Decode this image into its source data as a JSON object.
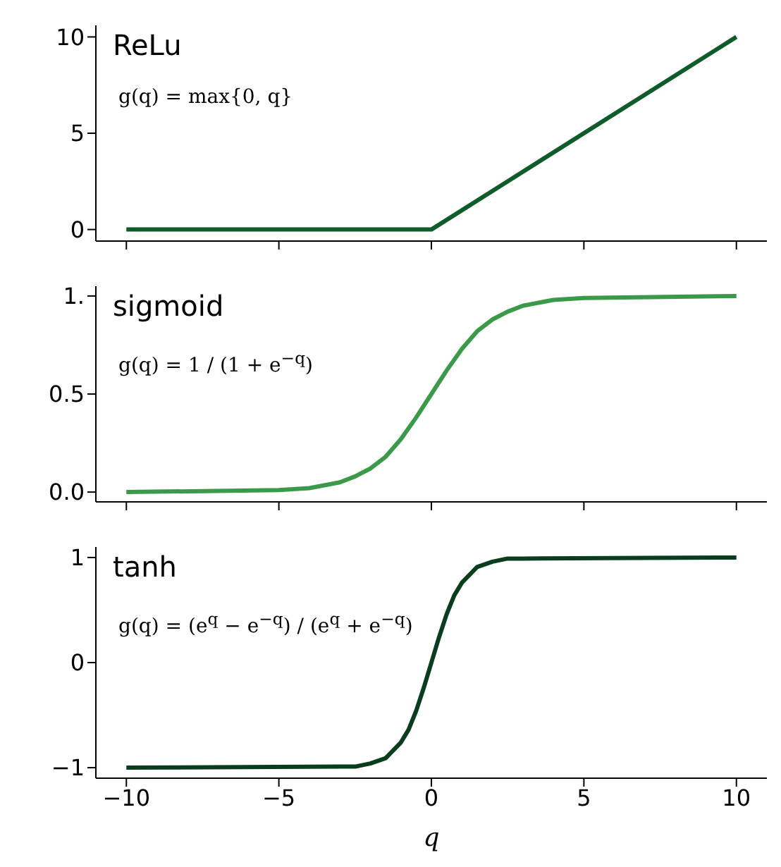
{
  "chart_data": [
    {
      "type": "line",
      "title": "ReLu",
      "annotations": [
        "g(q) = max{0, q}"
      ],
      "x": [
        -10,
        0,
        10
      ],
      "series": [
        {
          "color": "#0d5c2a",
          "values": [
            0,
            0,
            10
          ]
        }
      ],
      "xlim": [
        -11,
        11
      ],
      "xticks": [
        {
          "value": -10,
          "label": null
        },
        {
          "value": -5,
          "label": null
        },
        {
          "value": 0,
          "label": null
        },
        {
          "value": 5,
          "label": null
        },
        {
          "value": 10,
          "label": null
        }
      ],
      "ylim": [
        -0.6,
        10.6
      ],
      "yticks": [
        0,
        5,
        10
      ],
      "tick_labels": "y"
    },
    {
      "type": "line",
      "title": "sigmoid",
      "annotations": [
        "g(q) = 1 / (1 + e$^{−q}$)"
      ],
      "x": [
        -10,
        -5,
        -4,
        -3,
        -2.5,
        -2,
        -1.5,
        -1,
        -0.5,
        0,
        0.5,
        1,
        1.5,
        2,
        2.5,
        3,
        4,
        5,
        10
      ],
      "series": [
        {
          "color": "#3a9a4a",
          "values": [
            0,
            0.01,
            0.02,
            0.05,
            0.08,
            0.12,
            0.18,
            0.27,
            0.38,
            0.5,
            0.62,
            0.73,
            0.82,
            0.88,
            0.92,
            0.95,
            0.98,
            0.99,
            1
          ]
        }
      ],
      "xlim": [
        -11,
        11
      ],
      "xticks": [
        {
          "value": -10,
          "label": null
        },
        {
          "value": -5,
          "label": null
        },
        {
          "value": 0,
          "label": null
        },
        {
          "value": 5,
          "label": null
        },
        {
          "value": 10,
          "label": null
        }
      ],
      "ylim": [
        -0.05,
        1.05
      ],
      "yticks": [
        {
          "value": 0,
          "label": "0.0"
        },
        0.5,
        {
          "value": 1,
          "label": "1."
        }
      ],
      "tick_labels": "y"
    },
    {
      "type": "line",
      "title": "tanh",
      "annotations": [
        "g(q) = (e$^{q}$ − e$^{−q}$) / (e$^{q}$ + e$^{−q}$)"
      ],
      "xlabel": "q",
      "x": [
        -10,
        -3,
        -2.5,
        -2,
        -1.5,
        -1,
        -0.75,
        -0.5,
        -0.25,
        0,
        0.25,
        0.5,
        0.75,
        1,
        1.5,
        2,
        2.5,
        3,
        10
      ],
      "series": [
        {
          "color": "#0a3d1e",
          "values": [
            -1,
            -0.99,
            -0.99,
            -0.96,
            -0.91,
            -0.76,
            -0.64,
            -0.46,
            -0.24,
            0,
            0.24,
            0.46,
            0.64,
            0.76,
            0.91,
            0.96,
            0.99,
            0.99,
            1
          ]
        }
      ],
      "xlim": [
        -11,
        11
      ],
      "xticks": [
        {
          "value": -10,
          "label": "−10"
        },
        {
          "value": -5,
          "label": "−5"
        },
        0,
        5,
        10
      ],
      "ylim": [
        -1.1,
        1.1
      ],
      "yticks": [
        {
          "value": -1,
          "label": "−1"
        },
        0,
        1
      ]
    }
  ]
}
